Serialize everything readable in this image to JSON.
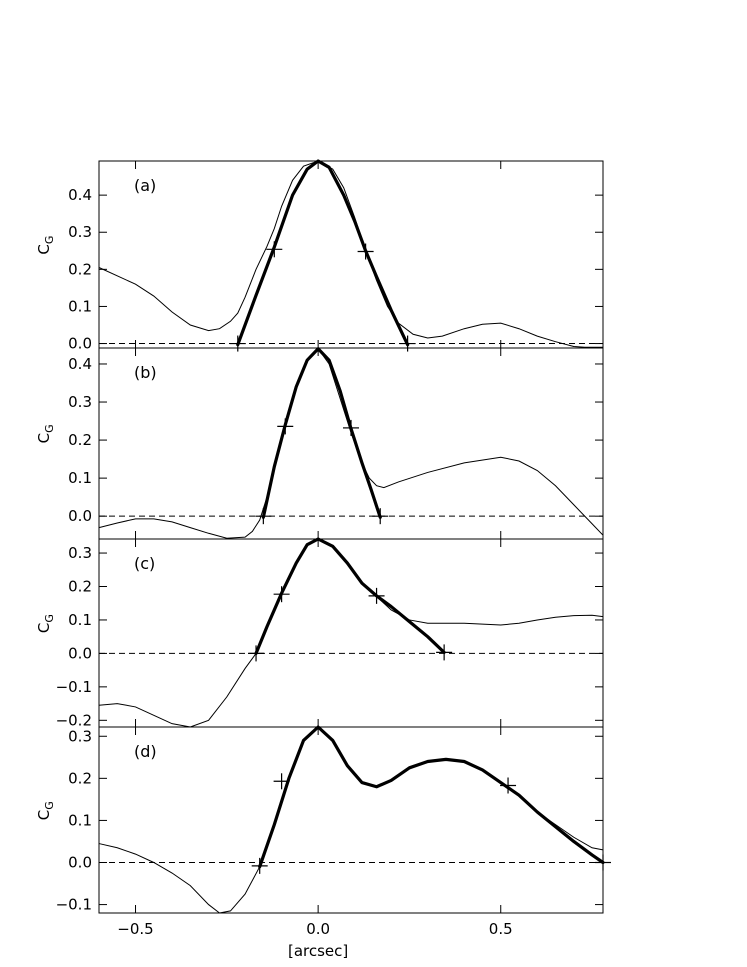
{
  "chart_data": [
    {
      "type": "line",
      "panel_label": "(a)",
      "ylabel": "C",
      "ylabel_sub": "G",
      "xlim": [
        -0.6,
        0.78
      ],
      "ylim": [
        -0.012,
        0.492
      ],
      "y_ticks": [
        0.0,
        0.1,
        0.2,
        0.3,
        0.4
      ],
      "y_tick_labels": [
        "0.0",
        "0.1",
        "0.2",
        "0.3",
        "0.4"
      ],
      "zero_line": "dashed",
      "series": [
        {
          "style": "thin",
          "x": [
            -0.6,
            -0.5,
            -0.45,
            -0.4,
            -0.35,
            -0.3,
            -0.27,
            -0.24,
            -0.22,
            -0.2,
            -0.17,
            -0.14,
            -0.12,
            -0.1,
            -0.07,
            -0.04,
            0.0,
            0.04,
            0.07,
            0.1,
            0.13,
            0.16,
            0.19,
            0.22,
            0.26,
            0.3,
            0.34,
            0.4,
            0.45,
            0.5,
            0.55,
            0.6,
            0.65,
            0.7,
            0.73,
            0.78
          ],
          "y": [
            0.205,
            0.16,
            0.128,
            0.085,
            0.05,
            0.035,
            0.04,
            0.06,
            0.082,
            0.125,
            0.2,
            0.262,
            0.31,
            0.37,
            0.44,
            0.478,
            0.492,
            0.47,
            0.42,
            0.34,
            0.25,
            0.17,
            0.1,
            0.055,
            0.025,
            0.015,
            0.02,
            0.04,
            0.052,
            0.055,
            0.04,
            0.02,
            0.005,
            -0.008,
            -0.01,
            -0.01
          ]
        },
        {
          "style": "thick",
          "x": [
            -0.22,
            -0.17,
            -0.12,
            -0.07,
            -0.03,
            0.0,
            0.03,
            0.07,
            0.1,
            0.13,
            0.16,
            0.2,
            0.245
          ],
          "y": [
            -0.003,
            0.13,
            0.26,
            0.4,
            0.47,
            0.492,
            0.475,
            0.4,
            0.33,
            0.25,
            0.18,
            0.09,
            -0.003
          ]
        }
      ],
      "markers": {
        "x": [
          -0.12,
          0.13,
          -0.22,
          0.245
        ],
        "y": [
          0.254,
          0.248,
          0.0,
          0.0
        ]
      }
    },
    {
      "type": "line",
      "panel_label": "(b)",
      "ylabel": "C",
      "ylabel_sub": "G",
      "xlim": [
        -0.6,
        0.78
      ],
      "ylim": [
        -0.06,
        0.442
      ],
      "y_ticks": [
        0.0,
        0.1,
        0.2,
        0.3,
        0.4
      ],
      "y_tick_labels": [
        "0.0",
        "0.1",
        "0.2",
        "0.3",
        "0.4"
      ],
      "zero_line": "dashed",
      "series": [
        {
          "style": "thin",
          "x": [
            -0.6,
            -0.55,
            -0.5,
            -0.45,
            -0.4,
            -0.35,
            -0.3,
            -0.25,
            -0.2,
            -0.18,
            -0.16,
            -0.14,
            -0.12,
            -0.09,
            -0.06,
            -0.03,
            0.0,
            0.03,
            0.06,
            0.09,
            0.12,
            0.14,
            0.16,
            0.18,
            0.22,
            0.3,
            0.4,
            0.5,
            0.55,
            0.6,
            0.65,
            0.7,
            0.75,
            0.78
          ],
          "y": [
            -0.03,
            -0.018,
            -0.007,
            -0.007,
            -0.015,
            -0.03,
            -0.045,
            -0.058,
            -0.055,
            -0.04,
            -0.01,
            0.05,
            0.13,
            0.24,
            0.34,
            0.41,
            0.44,
            0.4,
            0.31,
            0.22,
            0.14,
            0.1,
            0.08,
            0.075,
            0.09,
            0.115,
            0.14,
            0.155,
            0.145,
            0.12,
            0.08,
            0.03,
            -0.02,
            -0.05
          ]
        },
        {
          "style": "thick",
          "x": [
            -0.15,
            -0.12,
            -0.09,
            -0.06,
            -0.03,
            0.0,
            0.03,
            0.06,
            0.09,
            0.12,
            0.145,
            0.17
          ],
          "y": [
            -0.003,
            0.13,
            0.24,
            0.34,
            0.41,
            0.44,
            0.41,
            0.33,
            0.23,
            0.14,
            0.07,
            -0.003
          ]
        }
      ],
      "markers": {
        "x": [
          -0.09,
          0.09,
          -0.15,
          0.17
        ],
        "y": [
          0.236,
          0.232,
          0.0,
          0.0
        ]
      }
    },
    {
      "type": "line",
      "panel_label": "(c)",
      "ylabel": "C",
      "ylabel_sub": "G",
      "xlim": [
        -0.6,
        0.78
      ],
      "ylim": [
        -0.22,
        0.342
      ],
      "y_ticks": [
        -0.2,
        -0.1,
        0.0,
        0.1,
        0.2,
        0.3
      ],
      "y_tick_labels": [
        "−0.2",
        "−0.1",
        "0.0",
        "0.1",
        "0.2",
        "0.3"
      ],
      "zero_line": "dashed",
      "series": [
        {
          "style": "thin",
          "x": [
            -0.6,
            -0.55,
            -0.5,
            -0.45,
            -0.4,
            -0.35,
            -0.3,
            -0.25,
            -0.2,
            -0.17,
            -0.14,
            -0.1,
            -0.06,
            -0.03,
            0.0,
            0.04,
            0.08,
            0.12,
            0.16,
            0.2,
            0.25,
            0.3,
            0.4,
            0.5,
            0.55,
            0.6,
            0.65,
            0.7,
            0.75,
            0.78
          ],
          "y": [
            -0.155,
            -0.15,
            -0.16,
            -0.185,
            -0.21,
            -0.22,
            -0.2,
            -0.13,
            -0.045,
            0.0,
            0.08,
            0.18,
            0.27,
            0.325,
            0.342,
            0.32,
            0.27,
            0.21,
            0.17,
            0.13,
            0.1,
            0.09,
            0.09,
            0.085,
            0.09,
            0.1,
            0.108,
            0.113,
            0.114,
            0.11
          ]
        },
        {
          "style": "thick",
          "x": [
            -0.17,
            -0.14,
            -0.1,
            -0.06,
            -0.03,
            0.0,
            0.04,
            0.08,
            0.12,
            0.16,
            0.2,
            0.25,
            0.3,
            0.345
          ],
          "y": [
            0.0,
            0.08,
            0.18,
            0.27,
            0.325,
            0.342,
            0.32,
            0.27,
            0.21,
            0.172,
            0.14,
            0.095,
            0.05,
            0.003
          ]
        }
      ],
      "markers": {
        "x": [
          -0.1,
          0.16,
          -0.17,
          0.345
        ],
        "y": [
          0.177,
          0.172,
          0.0,
          0.003
        ]
      }
    },
    {
      "type": "line",
      "panel_label": "(d)",
      "ylabel": "C",
      "ylabel_sub": "G",
      "xlabel": "[arcsec]",
      "xlim": [
        -0.6,
        0.78
      ],
      "ylim": [
        -0.12,
        0.322
      ],
      "x_ticks": [
        -0.5,
        0.0,
        0.5
      ],
      "x_tick_labels": [
        "−0.5",
        "0.0",
        "0.5"
      ],
      "y_ticks": [
        -0.1,
        0.0,
        0.1,
        0.2,
        0.3
      ],
      "y_tick_labels": [
        "−0.1",
        "0.0",
        "0.1",
        "0.2",
        "0.3"
      ],
      "zero_line": "dashed",
      "series": [
        {
          "style": "thin",
          "x": [
            -0.6,
            -0.55,
            -0.5,
            -0.45,
            -0.4,
            -0.35,
            -0.3,
            -0.27,
            -0.24,
            -0.2,
            -0.16,
            -0.12,
            -0.08,
            -0.04,
            0.0,
            0.04,
            0.08,
            0.12,
            0.16,
            0.2,
            0.25,
            0.3,
            0.35,
            0.4,
            0.45,
            0.5,
            0.55,
            0.6,
            0.65,
            0.7,
            0.75,
            0.78
          ],
          "y": [
            0.045,
            0.035,
            0.02,
            0.0,
            -0.025,
            -0.055,
            -0.1,
            -0.12,
            -0.115,
            -0.075,
            -0.01,
            0.09,
            0.2,
            0.29,
            0.322,
            0.29,
            0.23,
            0.19,
            0.18,
            0.195,
            0.225,
            0.24,
            0.245,
            0.24,
            0.22,
            0.19,
            0.16,
            0.12,
            0.09,
            0.06,
            0.035,
            0.03
          ]
        },
        {
          "style": "thick",
          "x": [
            -0.16,
            -0.12,
            -0.08,
            -0.04,
            0.0,
            0.04,
            0.08,
            0.12,
            0.16,
            0.2,
            0.25,
            0.3,
            0.35,
            0.4,
            0.45,
            0.5,
            0.55,
            0.6,
            0.65,
            0.7,
            0.75,
            0.78
          ],
          "y": [
            -0.01,
            0.09,
            0.2,
            0.29,
            0.322,
            0.29,
            0.23,
            0.19,
            0.18,
            0.195,
            0.225,
            0.24,
            0.245,
            0.24,
            0.22,
            0.19,
            0.16,
            0.12,
            0.085,
            0.05,
            0.018,
            0.0
          ]
        }
      ],
      "markers": {
        "x": [
          -0.1,
          0.52,
          -0.16,
          0.78
        ],
        "y": [
          0.193,
          0.183,
          -0.008,
          0.0
        ]
      }
    }
  ]
}
